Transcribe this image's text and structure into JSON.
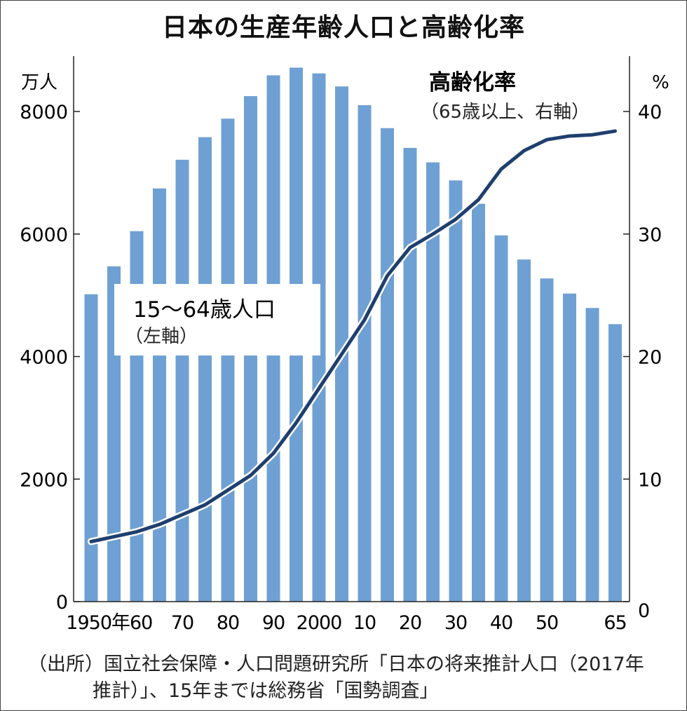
{
  "title": "日本の生産年齢人口と高齢化率",
  "chart_data": {
    "type": "bar+line",
    "title": "日本の生産年齢人口と高齢化率",
    "x": [
      1950,
      1955,
      1960,
      1965,
      1970,
      1975,
      1980,
      1985,
      1990,
      1995,
      2000,
      2005,
      2010,
      2015,
      2020,
      2025,
      2030,
      2035,
      2040,
      2045,
      2050,
      2055,
      2060,
      2065
    ],
    "x_tick_labels": [
      {
        "year": 1950,
        "label": "1950年"
      },
      {
        "year": 1960,
        "label": "60"
      },
      {
        "year": 1970,
        "label": "70"
      },
      {
        "year": 1980,
        "label": "80"
      },
      {
        "year": 1990,
        "label": "90"
      },
      {
        "year": 2000,
        "label": "2000"
      },
      {
        "year": 2010,
        "label": "10"
      },
      {
        "year": 2020,
        "label": "20"
      },
      {
        "year": 2030,
        "label": "30"
      },
      {
        "year": 2040,
        "label": "40"
      },
      {
        "year": 2050,
        "label": "50"
      },
      {
        "year": 2065,
        "label": "65"
      }
    ],
    "left_axis": {
      "unit": "万人",
      "ylim": [
        0,
        8800
      ],
      "ticks": [
        0,
        2000,
        4000,
        6000,
        8000
      ]
    },
    "right_axis": {
      "unit": "%",
      "ylim": [
        0,
        44
      ],
      "ticks": [
        0,
        10,
        20,
        30,
        40
      ]
    },
    "series": [
      {
        "name": "15〜64歳人口",
        "note": "（左軸）",
        "type": "bar",
        "axis": "left",
        "color": "#6fa0d3",
        "values": [
          5017,
          5473,
          6047,
          6744,
          7212,
          7581,
          7883,
          8251,
          8590,
          8716,
          8622,
          8409,
          8103,
          7728,
          7406,
          7170,
          6875,
          6494,
          5978,
          5584,
          5275,
          5028,
          4793,
          4529
        ]
      },
      {
        "name": "高齢化率",
        "note": "（65歳以上、右軸）",
        "type": "line",
        "axis": "right",
        "color": "#1f3f6e",
        "values": [
          4.9,
          5.3,
          5.7,
          6.3,
          7.1,
          7.9,
          9.1,
          10.3,
          12.1,
          14.6,
          17.4,
          20.2,
          23.0,
          26.6,
          28.9,
          30.0,
          31.2,
          32.8,
          35.3,
          36.8,
          37.7,
          38.0,
          38.1,
          38.4
        ]
      }
    ],
    "grid": false
  },
  "source": {
    "line1": "（出所）国立社会保障・人口問題研究所「日本の将来推計人口（2017年",
    "line2": "推計）」、15年までは総務省「国勢調査」"
  }
}
